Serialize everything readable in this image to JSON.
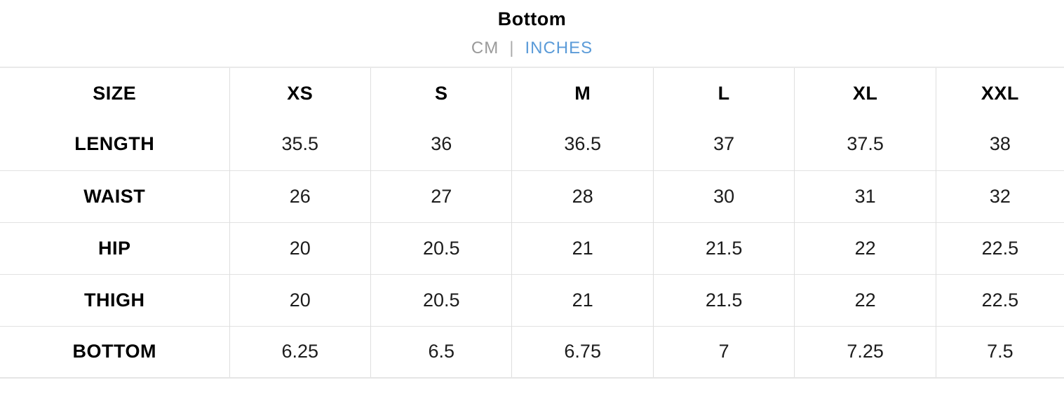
{
  "page": {
    "title": "Bottom"
  },
  "units": {
    "cm_label": "CM",
    "divider": "|",
    "inches_label": "INCHES",
    "selected": "INCHES"
  },
  "table": {
    "columns": [
      "SIZE",
      "XS",
      "S",
      "M",
      "L",
      "XL",
      "XXL"
    ],
    "rows": [
      {
        "label": "LENGTH",
        "values": [
          "35.5",
          "36",
          "36.5",
          "37",
          "37.5",
          "38"
        ]
      },
      {
        "label": "WAIST",
        "values": [
          "26",
          "27",
          "28",
          "30",
          "31",
          "32"
        ]
      },
      {
        "label": "HIP",
        "values": [
          "20",
          "20.5",
          "21",
          "21.5",
          "22",
          "22.5"
        ]
      },
      {
        "label": "THIGH",
        "values": [
          "20",
          "20.5",
          "21",
          "21.5",
          "22",
          "22.5"
        ]
      },
      {
        "label": "BOTTOM",
        "values": [
          "6.25",
          "6.5",
          "6.75",
          "7",
          "7.25",
          "7.5"
        ]
      }
    ]
  },
  "colors": {
    "accent_blue": "#5b9bd8",
    "muted_gray": "#9a9a9a",
    "border": "#e2e2e2",
    "text": "#000000"
  }
}
